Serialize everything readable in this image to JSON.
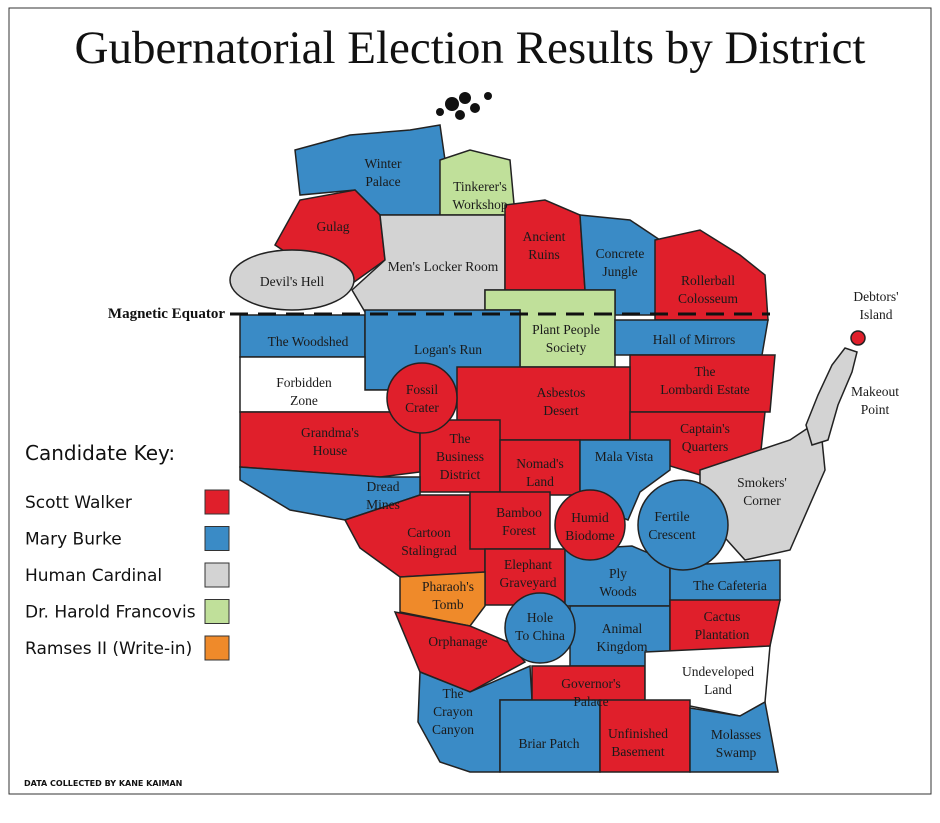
{
  "title": "Gubernatorial Election Results by District",
  "equator": "Magnetic Equator",
  "key": {
    "title": "Candidate Key:",
    "entries": [
      {
        "name": "Scott Walker",
        "color": "#e01f2b"
      },
      {
        "name": "Mary Burke",
        "color": "#3a8bc6"
      },
      {
        "name": "Human Cardinal",
        "color": "#d3d3d3"
      },
      {
        "name": "Dr. Harold Francovis",
        "color": "#c0e09a"
      },
      {
        "name": "Ramses II (Write-in)",
        "color": "#ef8a2a"
      }
    ]
  },
  "districts": [
    {
      "label": [
        "Winter",
        "Palace"
      ],
      "color": "#3a8bc6"
    },
    {
      "label": [
        "Tinkerer's",
        "Workshop"
      ],
      "color": "#c0e09a"
    },
    {
      "label": [
        "Gulag"
      ],
      "color": "#e01f2b"
    },
    {
      "label": [
        "Devil's Hell"
      ],
      "color": "#d3d3d3"
    },
    {
      "label": [
        "Men's Locker Room"
      ],
      "color": "#d3d3d3"
    },
    {
      "label": [
        "Ancient",
        "Ruins"
      ],
      "color": "#e01f2b"
    },
    {
      "label": [
        "Concrete",
        "Jungle"
      ],
      "color": "#3a8bc6"
    },
    {
      "label": [
        "Rollerball",
        "Colosseum"
      ],
      "color": "#e01f2b"
    },
    {
      "label": [
        "Plant People",
        "Society"
      ],
      "color": "#c0e09a"
    },
    {
      "label": [
        "The Woodshed"
      ],
      "color": "#3a8bc6"
    },
    {
      "label": [
        "Logan's Run"
      ],
      "color": "#3a8bc6"
    },
    {
      "label": [
        "Hall of Mirrors"
      ],
      "color": "#3a8bc6"
    },
    {
      "label": [
        "Forbidden",
        "Zone"
      ],
      "color": "#ffffff"
    },
    {
      "label": [
        "The",
        "Lombardi Estate"
      ],
      "color": "#e01f2b"
    },
    {
      "label": [
        "Fossil",
        "Crater"
      ],
      "color": "#e01f2b"
    },
    {
      "label": [
        "Asbestos",
        "Desert"
      ],
      "color": "#e01f2b"
    },
    {
      "label": [
        "Grandma's",
        "House"
      ],
      "color": "#e01f2b"
    },
    {
      "label": [
        "Captain's",
        "Quarters"
      ],
      "color": "#e01f2b"
    },
    {
      "label": [
        "The",
        "Business",
        "District"
      ],
      "color": "#e01f2b"
    },
    {
      "label": [
        "Nomad's",
        "Land"
      ],
      "color": "#e01f2b"
    },
    {
      "label": [
        "Mala Vista"
      ],
      "color": "#3a8bc6"
    },
    {
      "label": [
        "Dread",
        "Mines"
      ],
      "color": "#3a8bc6"
    },
    {
      "label": [
        "Smokers'",
        "Corner"
      ],
      "color": "#d3d3d3"
    },
    {
      "label": [
        "Fertile",
        "Crescent"
      ],
      "color": "#3a8bc6"
    },
    {
      "label": [
        "Cartoon",
        "Stalingrad"
      ],
      "color": "#e01f2b"
    },
    {
      "label": [
        "Bamboo",
        "Forest"
      ],
      "color": "#e01f2b"
    },
    {
      "label": [
        "Humid",
        "Biodome"
      ],
      "color": "#e01f2b"
    },
    {
      "label": [
        "Elephant",
        "Graveyard"
      ],
      "color": "#e01f2b"
    },
    {
      "label": [
        "Ply",
        "Woods"
      ],
      "color": "#3a8bc6"
    },
    {
      "label": [
        "The Cafeteria"
      ],
      "color": "#3a8bc6"
    },
    {
      "label": [
        "Pharaoh's",
        "Tomb"
      ],
      "color": "#ef8a2a"
    },
    {
      "label": [
        "Hole",
        "To China"
      ],
      "color": "#3a8bc6"
    },
    {
      "label": [
        "Orphanage"
      ],
      "color": "#e01f2b"
    },
    {
      "label": [
        "Animal",
        "Kingdom"
      ],
      "color": "#3a8bc6"
    },
    {
      "label": [
        "Cactus",
        "Plantation"
      ],
      "color": "#e01f2b"
    },
    {
      "label": [
        "The",
        "Crayon",
        "Canyon"
      ],
      "color": "#3a8bc6"
    },
    {
      "label": [
        "Governor's",
        "Palace"
      ],
      "color": "#e01f2b"
    },
    {
      "label": [
        "Undeveloped",
        "Land"
      ],
      "color": "#ffffff"
    },
    {
      "label": [
        "Briar Patch"
      ],
      "color": "#3a8bc6"
    },
    {
      "label": [
        "Unfinished",
        "Basement"
      ],
      "color": "#e01f2b"
    },
    {
      "label": [
        "Molasses",
        "Swamp"
      ],
      "color": "#3a8bc6"
    },
    {
      "label": [
        "Debtors'",
        "Island"
      ],
      "color": "#e01f2b"
    },
    {
      "label": [
        "Makeout",
        "Point"
      ],
      "color": "#d3d3d3"
    }
  ],
  "credit": "DATA COLLECTED BY KANE KAIMAN"
}
